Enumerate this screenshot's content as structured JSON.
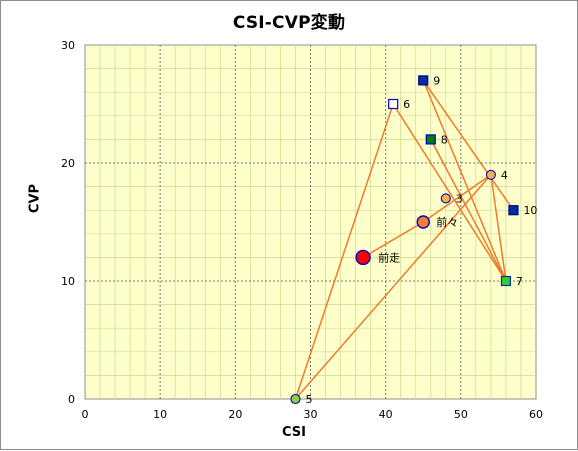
{
  "chart_data": {
    "type": "scatter",
    "title": "CSI-CVP変動",
    "xlabel": "CSI",
    "ylabel": "CVP",
    "xlim": [
      0,
      60
    ],
    "ylim": [
      0,
      30
    ],
    "x_ticks": [
      0,
      10,
      20,
      30,
      40,
      50,
      60
    ],
    "y_ticks": [
      0,
      10,
      20,
      30
    ],
    "grid": true,
    "colors": {
      "plot_background": "#ffffcc",
      "connector_line": "#f07a2a",
      "major_grid": "#777777",
      "minor_grid": "#c9d98f"
    },
    "points": [
      {
        "label": "前走",
        "x": 37,
        "y": 12,
        "marker": "circle",
        "fill": "#ff0000",
        "stroke": "#0000cc",
        "size": "large"
      },
      {
        "label": "前々",
        "x": 45,
        "y": 15,
        "marker": "circle",
        "fill": "#f08030",
        "stroke": "#0000cc",
        "size": "medium"
      },
      {
        "label": "3",
        "x": 48,
        "y": 17,
        "marker": "circle",
        "fill": "#f5b342",
        "stroke": "#0000cc",
        "size": "small"
      },
      {
        "label": "4",
        "x": 54,
        "y": 19,
        "marker": "circle",
        "fill": "#f5b342",
        "stroke": "#0000cc",
        "size": "small"
      },
      {
        "label": "5",
        "x": 28,
        "y": 0,
        "marker": "circle",
        "fill": "#9acd32",
        "stroke": "#0000cc",
        "size": "small"
      },
      {
        "label": "6",
        "x": 41,
        "y": 25,
        "marker": "square",
        "fill": "#ffffff",
        "stroke": "#0000cc",
        "size": "small"
      },
      {
        "label": "7",
        "x": 56,
        "y": 10,
        "marker": "square",
        "fill": "#33cc33",
        "stroke": "#003399",
        "size": "small"
      },
      {
        "label": "8",
        "x": 46,
        "y": 22,
        "marker": "square",
        "fill": "#008000",
        "stroke": "#0000cc",
        "size": "small"
      },
      {
        "label": "9",
        "x": 45,
        "y": 27,
        "marker": "square",
        "fill": "#002f9c",
        "stroke": "#00008b",
        "size": "small"
      },
      {
        "label": "10",
        "x": 57,
        "y": 16,
        "marker": "square",
        "fill": "#002f9c",
        "stroke": "#00008b",
        "size": "small"
      }
    ],
    "connection_order": [
      "前走",
      "前々",
      "4",
      "7",
      "9",
      "10"
    ],
    "secondary_path": [
      "7",
      "6",
      "5",
      "4"
    ],
    "extra_link": [
      "8",
      "7"
    ]
  }
}
